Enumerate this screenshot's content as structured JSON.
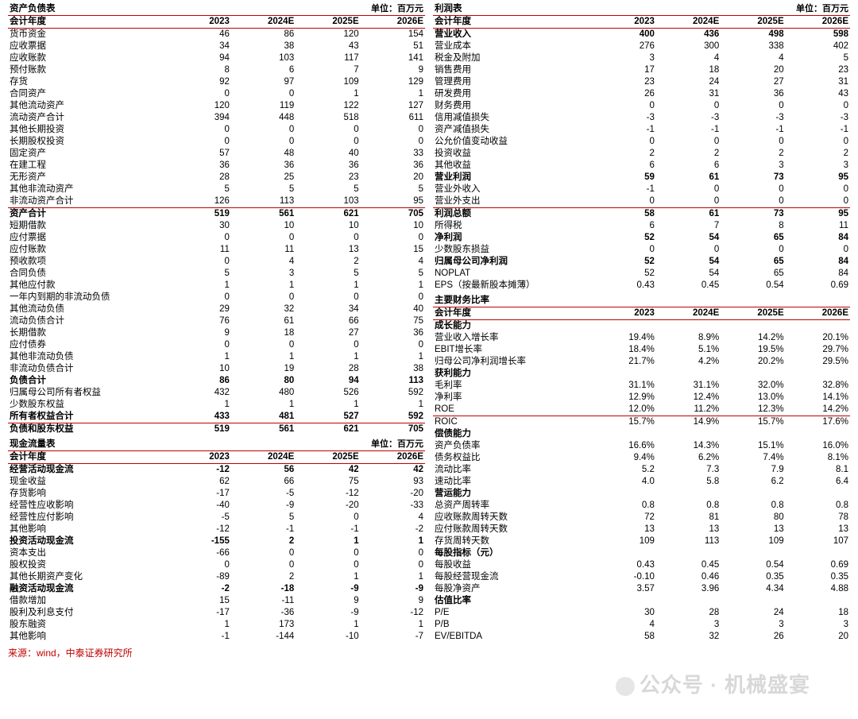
{
  "colors": {
    "rule": "#c00000",
    "text": "#000000",
    "source": "#c00000",
    "watermark": "#b8b8b8"
  },
  "fonts": {
    "base_size": 11.5,
    "title_weight": "bold"
  },
  "unit_label": "单位：百万元",
  "years": [
    "2023",
    "2024E",
    "2025E",
    "2026E"
  ],
  "year_header_label": "会计年度",
  "source": "来源：wind，中泰证券研究所",
  "watermark": "公众号 · 机械盛宴",
  "balance_sheet": {
    "title": "资产负债表",
    "rows": [
      {
        "l": "货币资金",
        "v": [
          46,
          86,
          120,
          154
        ]
      },
      {
        "l": "应收票据",
        "v": [
          34,
          38,
          43,
          51
        ]
      },
      {
        "l": "应收账款",
        "v": [
          94,
          103,
          117,
          141
        ]
      },
      {
        "l": "预付账款",
        "v": [
          8,
          6,
          7,
          9
        ]
      },
      {
        "l": "存货",
        "v": [
          92,
          97,
          109,
          129
        ]
      },
      {
        "l": "合同资产",
        "v": [
          0,
          0,
          1,
          1
        ]
      },
      {
        "l": "其他流动资产",
        "v": [
          120,
          119,
          122,
          127
        ]
      },
      {
        "l": "流动资产合计",
        "v": [
          394,
          448,
          518,
          611
        ]
      },
      {
        "l": "其他长期投资",
        "v": [
          0,
          0,
          0,
          0
        ]
      },
      {
        "l": "长期股权投资",
        "v": [
          0,
          0,
          0,
          0
        ]
      },
      {
        "l": "固定资产",
        "v": [
          57,
          48,
          40,
          33
        ]
      },
      {
        "l": "在建工程",
        "v": [
          36,
          36,
          36,
          36
        ]
      },
      {
        "l": "无形资产",
        "v": [
          28,
          25,
          23,
          20
        ]
      },
      {
        "l": "其他非流动资产",
        "v": [
          5,
          5,
          5,
          5
        ]
      },
      {
        "l": "非流动资产合计",
        "v": [
          126,
          113,
          103,
          95
        ]
      },
      {
        "l": "资产合计",
        "v": [
          519,
          561,
          621,
          705
        ],
        "bold": true,
        "sep_before": true
      },
      {
        "l": "短期借款",
        "v": [
          30,
          10,
          10,
          10
        ]
      },
      {
        "l": "应付票据",
        "v": [
          0,
          0,
          0,
          0
        ]
      },
      {
        "l": "应付账款",
        "v": [
          11,
          11,
          13,
          15
        ]
      },
      {
        "l": "预收款项",
        "v": [
          0,
          4,
          2,
          4
        ]
      },
      {
        "l": "合同负债",
        "v": [
          5,
          3,
          5,
          5
        ]
      },
      {
        "l": "其他应付款",
        "v": [
          1,
          1,
          1,
          1
        ]
      },
      {
        "l": "一年内到期的非流动负债",
        "v": [
          0,
          0,
          0,
          0
        ]
      },
      {
        "l": "其他流动负债",
        "v": [
          29,
          32,
          34,
          40
        ]
      },
      {
        "l": "流动负债合计",
        "v": [
          76,
          61,
          66,
          75
        ]
      },
      {
        "l": "长期借款",
        "v": [
          9,
          18,
          27,
          36
        ]
      },
      {
        "l": "应付债券",
        "v": [
          0,
          0,
          0,
          0
        ]
      },
      {
        "l": "其他非流动负债",
        "v": [
          1,
          1,
          1,
          1
        ]
      },
      {
        "l": "非流动负债合计",
        "v": [
          10,
          19,
          28,
          38
        ]
      },
      {
        "l": "负债合计",
        "v": [
          86,
          80,
          94,
          113
        ],
        "bold": true
      },
      {
        "l": "归属母公司所有者权益",
        "v": [
          432,
          480,
          526,
          592
        ]
      },
      {
        "l": "少数股东权益",
        "v": [
          1,
          1,
          1,
          1
        ]
      },
      {
        "l": "所有者权益合计",
        "v": [
          433,
          481,
          527,
          592
        ],
        "bold": true
      },
      {
        "l": "负债和股东权益",
        "v": [
          519,
          561,
          621,
          705
        ],
        "bold": true,
        "sep_before": true
      }
    ]
  },
  "cash_flow": {
    "title": "现金流量表",
    "rows": [
      {
        "l": "经营活动现金流",
        "v": [
          -12,
          56,
          42,
          42
        ],
        "bold": true
      },
      {
        "l": "现金收益",
        "v": [
          62,
          66,
          75,
          93
        ]
      },
      {
        "l": "存货影响",
        "v": [
          -17,
          -5,
          -12,
          -20
        ]
      },
      {
        "l": "经营性应收影响",
        "v": [
          -40,
          -9,
          -20,
          -33
        ]
      },
      {
        "l": "经营性应付影响",
        "v": [
          -5,
          5,
          0,
          4
        ]
      },
      {
        "l": "其他影响",
        "v": [
          -12,
          -1,
          -1,
          -2
        ]
      },
      {
        "l": "投资活动现金流",
        "v": [
          -155,
          2,
          1,
          1
        ],
        "bold": true
      },
      {
        "l": "资本支出",
        "v": [
          -66,
          0,
          0,
          0
        ]
      },
      {
        "l": "股权投资",
        "v": [
          0,
          0,
          0,
          0
        ]
      },
      {
        "l": "其他长期资产变化",
        "v": [
          -89,
          2,
          1,
          1
        ]
      },
      {
        "l": "融资活动现金流",
        "v": [
          -2,
          -18,
          -9,
          -9
        ],
        "bold": true
      },
      {
        "l": "借款增加",
        "v": [
          15,
          -11,
          9,
          9
        ]
      },
      {
        "l": "股利及利息支付",
        "v": [
          -17,
          -36,
          -9,
          -12
        ]
      },
      {
        "l": "股东融资",
        "v": [
          1,
          173,
          1,
          1
        ]
      },
      {
        "l": "其他影响",
        "v": [
          -1,
          -144,
          -10,
          -7
        ]
      }
    ]
  },
  "income": {
    "title": "利润表",
    "rows": [
      {
        "l": "营业收入",
        "v": [
          400,
          436,
          498,
          598
        ],
        "bold": true
      },
      {
        "l": "营业成本",
        "v": [
          276,
          300,
          338,
          402
        ]
      },
      {
        "l": "税金及附加",
        "v": [
          3,
          4,
          4,
          5
        ]
      },
      {
        "l": "销售费用",
        "v": [
          17,
          18,
          20,
          23
        ]
      },
      {
        "l": "管理费用",
        "v": [
          23,
          24,
          27,
          31
        ]
      },
      {
        "l": "研发费用",
        "v": [
          26,
          31,
          36,
          43
        ]
      },
      {
        "l": "财务费用",
        "v": [
          0,
          0,
          0,
          0
        ]
      },
      {
        "l": "信用减值损失",
        "v": [
          -3,
          -3,
          -3,
          -3
        ]
      },
      {
        "l": "资产减值损失",
        "v": [
          -1,
          -1,
          -1,
          -1
        ]
      },
      {
        "l": "公允价值变动收益",
        "v": [
          0,
          0,
          0,
          0
        ]
      },
      {
        "l": "投资收益",
        "v": [
          2,
          2,
          2,
          2
        ]
      },
      {
        "l": "其他收益",
        "v": [
          6,
          6,
          3,
          3
        ]
      },
      {
        "l": "营业利润",
        "v": [
          59,
          61,
          73,
          95
        ],
        "bold": true
      },
      {
        "l": "营业外收入",
        "v": [
          -1,
          0,
          0,
          0
        ]
      },
      {
        "l": "营业外支出",
        "v": [
          0,
          0,
          0,
          0
        ]
      },
      {
        "l": "利润总额",
        "v": [
          58,
          61,
          73,
          95
        ],
        "bold": true,
        "sep_before": true
      },
      {
        "l": "所得税",
        "v": [
          6,
          7,
          8,
          11
        ]
      },
      {
        "l": "净利润",
        "v": [
          52,
          54,
          65,
          84
        ],
        "bold": true
      },
      {
        "l": "少数股东损益",
        "v": [
          0,
          0,
          0,
          0
        ]
      },
      {
        "l": "归属母公司净利润",
        "v": [
          52,
          54,
          65,
          84
        ],
        "bold": true
      },
      {
        "l": "NOPLAT",
        "v": [
          52,
          54,
          65,
          84
        ]
      },
      {
        "l": "EPS（按最新股本摊薄）",
        "v": [
          "0.43",
          "0.45",
          "0.54",
          "0.69"
        ]
      }
    ]
  },
  "ratios": {
    "title": "主要财务比率",
    "rows": [
      {
        "l": "成长能力",
        "head": true
      },
      {
        "l": "营业收入增长率",
        "v": [
          "19.4%",
          "8.9%",
          "14.2%",
          "20.1%"
        ]
      },
      {
        "l": "EBIT增长率",
        "v": [
          "18.4%",
          "5.1%",
          "19.5%",
          "29.7%"
        ]
      },
      {
        "l": "归母公司净利润增长率",
        "v": [
          "21.7%",
          "4.2%",
          "20.2%",
          "29.5%"
        ]
      },
      {
        "l": "获利能力",
        "head": true
      },
      {
        "l": "毛利率",
        "v": [
          "31.1%",
          "31.1%",
          "32.0%",
          "32.8%"
        ]
      },
      {
        "l": "净利率",
        "v": [
          "12.9%",
          "12.4%",
          "13.0%",
          "14.1%"
        ]
      },
      {
        "l": "ROE",
        "v": [
          "12.0%",
          "11.2%",
          "12.3%",
          "14.2%"
        ]
      },
      {
        "l": "ROIC",
        "v": [
          "15.7%",
          "14.9%",
          "15.7%",
          "17.6%"
        ],
        "sep_before": true
      },
      {
        "l": "偿债能力",
        "head": true
      },
      {
        "l": "资产负债率",
        "v": [
          "16.6%",
          "14.3%",
          "15.1%",
          "16.0%"
        ]
      },
      {
        "l": "债务权益比",
        "v": [
          "9.4%",
          "6.2%",
          "7.4%",
          "8.1%"
        ]
      },
      {
        "l": "流动比率",
        "v": [
          "5.2",
          "7.3",
          "7.9",
          "8.1"
        ]
      },
      {
        "l": "速动比率",
        "v": [
          "4.0",
          "5.8",
          "6.2",
          "6.4"
        ]
      },
      {
        "l": "营运能力",
        "head": true
      },
      {
        "l": "总资产周转率",
        "v": [
          "0.8",
          "0.8",
          "0.8",
          "0.8"
        ]
      },
      {
        "l": "应收账款周转天数",
        "v": [
          72,
          81,
          80,
          78
        ]
      },
      {
        "l": "应付账款周转天数",
        "v": [
          13,
          13,
          13,
          13
        ]
      },
      {
        "l": "存货周转天数",
        "v": [
          109,
          113,
          109,
          107
        ]
      },
      {
        "l": "每股指标（元）",
        "head": true
      },
      {
        "l": "每股收益",
        "v": [
          "0.43",
          "0.45",
          "0.54",
          "0.69"
        ]
      },
      {
        "l": "每股经营现金流",
        "v": [
          "-0.10",
          "0.46",
          "0.35",
          "0.35"
        ]
      },
      {
        "l": "每股净资产",
        "v": [
          "3.57",
          "3.96",
          "4.34",
          "4.88"
        ]
      },
      {
        "l": "估值比率",
        "head": true
      },
      {
        "l": "P/E",
        "v": [
          30,
          28,
          24,
          18
        ]
      },
      {
        "l": "P/B",
        "v": [
          4,
          3,
          3,
          3
        ]
      },
      {
        "l": "EV/EBITDA",
        "v": [
          58,
          32,
          26,
          20
        ]
      }
    ]
  }
}
